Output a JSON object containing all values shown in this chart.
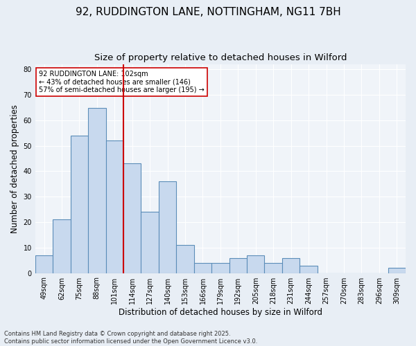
{
  "title1": "92, RUDDINGTON LANE, NOTTINGHAM, NG11 7BH",
  "title2": "Size of property relative to detached houses in Wilford",
  "xlabel": "Distribution of detached houses by size in Wilford",
  "ylabel": "Number of detached properties",
  "categories": [
    "49sqm",
    "62sqm",
    "75sqm",
    "88sqm",
    "101sqm",
    "114sqm",
    "127sqm",
    "140sqm",
    "153sqm",
    "166sqm",
    "179sqm",
    "192sqm",
    "205sqm",
    "218sqm",
    "231sqm",
    "244sqm",
    "257sqm",
    "270sqm",
    "283sqm",
    "296sqm",
    "309sqm"
  ],
  "values": [
    7,
    21,
    54,
    65,
    52,
    43,
    24,
    36,
    11,
    4,
    4,
    6,
    7,
    4,
    6,
    3,
    0,
    0,
    0,
    0,
    2
  ],
  "bar_color": "#c8d9ee",
  "bar_edge_color": "#5b8db8",
  "vline_index": 4,
  "vline_color": "#cc0000",
  "annotation_text": "92 RUDDINGTON LANE: 102sqm\n← 43% of detached houses are smaller (146)\n57% of semi-detached houses are larger (195) →",
  "annotation_box_color": "white",
  "annotation_box_edge": "#cc0000",
  "ylim": [
    0,
    82
  ],
  "yticks": [
    0,
    10,
    20,
    30,
    40,
    50,
    60,
    70,
    80
  ],
  "footer": "Contains HM Land Registry data © Crown copyright and database right 2025.\nContains public sector information licensed under the Open Government Licence v3.0.",
  "bg_color": "#e8eef5",
  "plot_bg_color": "#f0f4f9",
  "grid_color": "#ffffff",
  "title1_fontsize": 11,
  "title2_fontsize": 9.5,
  "label_fontsize": 8.5,
  "tick_fontsize": 7,
  "footer_fontsize": 6,
  "annot_fontsize": 7
}
